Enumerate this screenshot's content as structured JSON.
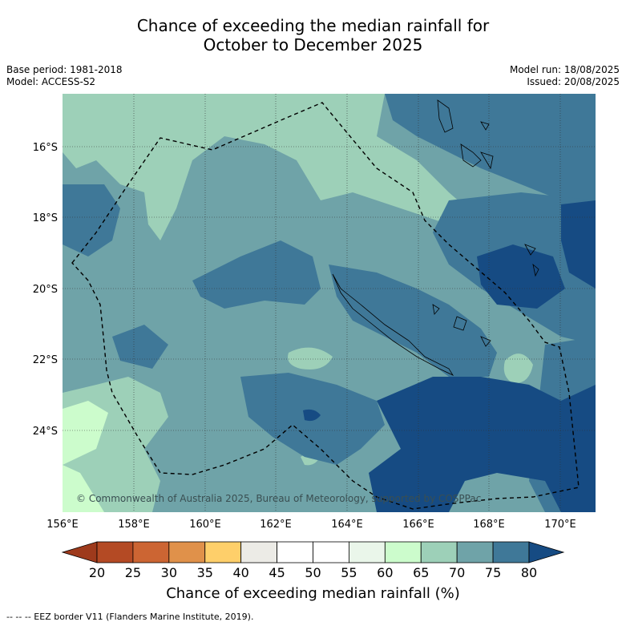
{
  "title_line1": "Chance of exceeding the median rainfall for",
  "title_line2": "October to December 2025",
  "meta_left": [
    "Base period: 1981-2018",
    "Model: ACCESS-S2"
  ],
  "meta_right": [
    "Model run: 18/08/2025",
    "Issued: 20/08/2025"
  ],
  "copyright": "© Commonwealth of Australia 2025, Bureau of Meteorology, supported by COSPPac",
  "lat_ticks": [
    "16°S",
    "18°S",
    "20°S",
    "22°S",
    "24°S"
  ],
  "lon_ticks": [
    "156°E",
    "158°E",
    "160°E",
    "162°E",
    "164°E",
    "166°E",
    "168°E",
    "170°E"
  ],
  "colorbar": {
    "labels": [
      "20",
      "25",
      "30",
      "35",
      "40",
      "45",
      "50",
      "55",
      "60",
      "65",
      "70",
      "75",
      "80"
    ],
    "colors": [
      "#9e3a1c",
      "#b44a24",
      "#cc6533",
      "#e0914a",
      "#fecf6a",
      "#ecebe6",
      "#ffffff",
      "#ffffff",
      "#eaf6ea",
      "#ccfccc",
      "#9dd0b8",
      "#6fa3a8",
      "#3f7898",
      "#164b83"
    ],
    "title": "Chance of exceeding median rainfall (%)"
  },
  "footer": "--  --  -- EEZ border V11 (Flanders Marine Institute, 2019)."
}
